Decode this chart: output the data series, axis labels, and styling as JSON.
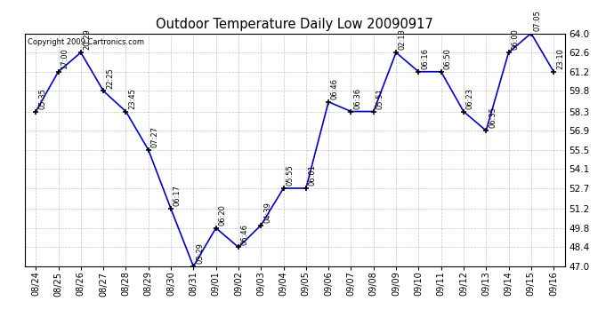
{
  "title": "Outdoor Temperature Daily Low 20090917",
  "copyright": "Copyright 2009 Cartronics.com",
  "background_color": "#ffffff",
  "line_color": "#0000cc",
  "grid_color": "#aaaaaa",
  "text_color": "#000000",
  "dates": [
    "08/24",
    "08/25",
    "08/26",
    "08/27",
    "08/28",
    "08/29",
    "08/30",
    "08/31",
    "09/01",
    "09/02",
    "09/03",
    "09/04",
    "09/05",
    "09/06",
    "09/07",
    "09/08",
    "09/09",
    "09/10",
    "09/11",
    "09/12",
    "09/13",
    "09/14",
    "09/15",
    "09/16"
  ],
  "temps": [
    58.3,
    61.2,
    62.6,
    59.8,
    58.3,
    55.5,
    51.2,
    47.0,
    49.8,
    48.4,
    50.0,
    52.7,
    52.7,
    59.0,
    58.3,
    58.3,
    62.6,
    61.2,
    61.2,
    58.3,
    56.9,
    62.6,
    64.0,
    61.2
  ],
  "times": [
    "05:35",
    "17:00",
    "20:29",
    "22:25",
    "23:45",
    "07:27",
    "06:17",
    "03:29",
    "06:20",
    "06:46",
    "04:39",
    "05:55",
    "06:01",
    "06:46",
    "06:36",
    "05:51",
    "02:13",
    "06:16",
    "06:50",
    "06:23",
    "06:35",
    "06:00",
    "07:05",
    "23:10"
  ],
  "ylim": [
    47.0,
    64.0
  ],
  "yticks": [
    47.0,
    48.4,
    49.8,
    51.2,
    52.7,
    54.1,
    55.5,
    56.9,
    58.3,
    59.8,
    61.2,
    62.6,
    64.0
  ],
  "annotation_fontsize": 6.0,
  "xlabel_fontsize": 7.0,
  "ylabel_fontsize": 7.5,
  "title_fontsize": 10.5
}
